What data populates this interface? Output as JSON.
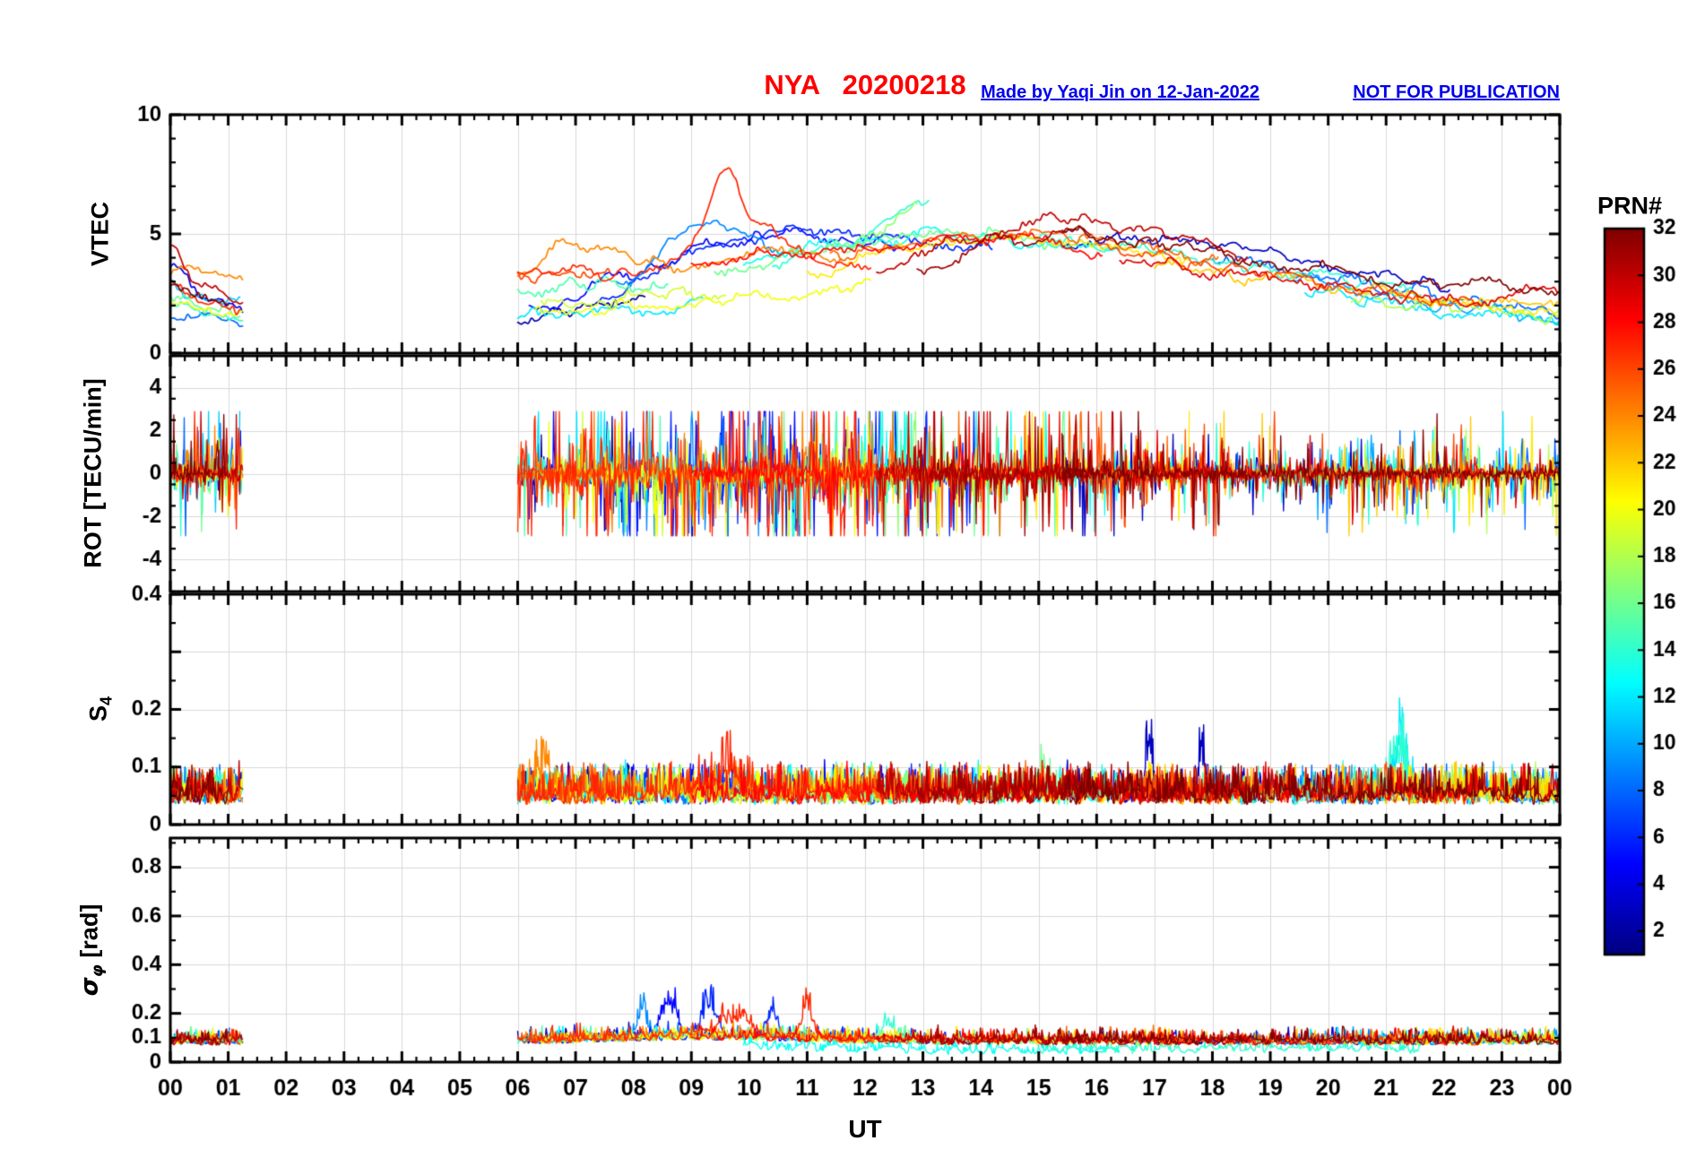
{
  "header": {
    "title": "NYA   20200218",
    "credit": "Made by Yaqi Jin on 12-Jan-2022",
    "warning": "NOT FOR PUBLICATION"
  },
  "chart_data": {
    "type": "line",
    "title": "NYA   20200218",
    "x_axis": {
      "label": "UT",
      "range": [
        0,
        24
      ],
      "major_step": 1,
      "minor_step": 0.25,
      "tick_labels": [
        "00",
        "01",
        "02",
        "03",
        "04",
        "05",
        "06",
        "07",
        "08",
        "09",
        "10",
        "11",
        "12",
        "13",
        "14",
        "15",
        "16",
        "17",
        "18",
        "19",
        "20",
        "21",
        "22",
        "23",
        "00"
      ]
    },
    "panels": [
      {
        "id": "vtec",
        "ylabel": "VTEC",
        "ylim": [
          0,
          10
        ],
        "ymajor": [
          0,
          5,
          10
        ],
        "yminor_step": 1,
        "ylabels": [
          {
            "v": 0,
            "l": "0"
          },
          {
            "v": 5,
            "l": "5"
          },
          {
            "v": 10,
            "l": "10"
          }
        ],
        "grid": true
      },
      {
        "id": "rot",
        "ylabel": "ROT [TECU/min]",
        "ylim": [
          -5.5,
          5.5
        ],
        "ymajor": [
          -4,
          -2,
          0,
          2,
          4
        ],
        "yminor_step": 1,
        "ylabels": [
          {
            "v": -4,
            "l": "-4"
          },
          {
            "v": -2,
            "l": "-2"
          },
          {
            "v": 0,
            "l": "0"
          },
          {
            "v": 2,
            "l": "2"
          },
          {
            "v": 4,
            "l": "4"
          }
        ],
        "grid": true
      },
      {
        "id": "s4",
        "ylabel_main": "S",
        "ylabel_sub": "4",
        "ylim": [
          0,
          0.4
        ],
        "ymajor": [
          0,
          0.1,
          0.2,
          0.3,
          0.4
        ],
        "yminor_step": 0.05,
        "ylabels": [
          {
            "v": 0,
            "l": "0"
          },
          {
            "v": 0.1,
            "l": "0.1"
          },
          {
            "v": 0.2,
            "l": "0.2"
          },
          {
            "v": 0.4,
            "l": "0.4"
          }
        ],
        "grid": true
      },
      {
        "id": "sigma_phi",
        "ylabel_main": "σ",
        "ylabel_sub": "φ",
        "ylabel_suffix": " [rad]",
        "ylim": [
          0,
          0.92
        ],
        "ymajor": [
          0,
          0.2,
          0.4,
          0.6,
          0.8
        ],
        "yminor_step": 0.1,
        "ylabels": [
          {
            "v": 0,
            "l": "0"
          },
          {
            "v": 0.1,
            "l": "0.1"
          },
          {
            "v": 0.2,
            "l": "0.2"
          },
          {
            "v": 0.4,
            "l": "0.4"
          },
          {
            "v": 0.6,
            "l": "0.6"
          },
          {
            "v": 0.8,
            "l": "0.8"
          }
        ],
        "grid": true
      }
    ],
    "colorbar": {
      "label": "PRN#",
      "range": [
        1,
        32
      ],
      "ticks": [
        2,
        4,
        6,
        8,
        10,
        12,
        14,
        16,
        18,
        20,
        22,
        24,
        26,
        28,
        30,
        32
      ],
      "colormap": "jet"
    },
    "style": {
      "background": "#ffffff",
      "grid_color": "#d9d9d9",
      "axis_color": "#000000",
      "title_color": "#ff0000",
      "note_color": "#0000ee",
      "line_color_rule": "jet((prn-1)/31)"
    },
    "passes": [
      {
        "p": 4,
        "t0": 0,
        "t1": 1.25,
        "v": [
          3.9,
          2.2,
          1.8
        ]
      },
      {
        "p": 8,
        "t0": 0,
        "t1": 1.25,
        "v": [
          1.3,
          1.6,
          1.5
        ]
      },
      {
        "p": 11,
        "t0": 0,
        "t1": 1.2,
        "v": [
          2.7,
          2.5,
          2.3
        ]
      },
      {
        "p": 14,
        "t0": 0,
        "t1": 1.25,
        "v": [
          1.9,
          1.75,
          1.6
        ]
      },
      {
        "p": 16,
        "t0": 0,
        "t1": 1.2,
        "v": [
          2.3,
          2.0,
          1.8
        ]
      },
      {
        "p": 20,
        "t0": 0,
        "t1": 1.25,
        "v": [
          2.1,
          1.9,
          1.85
        ]
      },
      {
        "p": 24,
        "t0": 0,
        "t1": 1.25,
        "v": [
          3.3,
          3.45,
          3.3
        ]
      },
      {
        "p": 27,
        "t0": 0,
        "t1": 1.2,
        "v": [
          3.0,
          2.3,
          2.0
        ]
      },
      {
        "p": 30,
        "t0": 0,
        "t1": 1.25,
        "v": [
          4.4,
          2.6,
          2.2
        ]
      },
      {
        "p": 32,
        "t0": 0,
        "t1": 1.0,
        "v": [
          2.6,
          2.4,
          2.3
        ]
      },
      {
        "p": 2,
        "t0": 6.0,
        "t1": 8.2,
        "v": [
          1.5,
          1.8,
          2.1
        ]
      },
      {
        "p": 3,
        "t0": 15.4,
        "t1": 22.1,
        "v": [
          4.6,
          4.9,
          4.4,
          3.6,
          2.9
        ],
        "s4s": [
          [
            16.9,
            0.1,
            0.05
          ],
          [
            17.8,
            0.085,
            0.05
          ]
        ]
      },
      {
        "p": 5,
        "t0": 6.2,
        "t1": 12.6,
        "v": [
          1.7,
          3.2,
          4.6,
          5.0,
          4.5
        ],
        "ra": 0.5,
        "sgs": [
          [
            8.6,
            0.16,
            0.12
          ]
        ]
      },
      {
        "p": 6,
        "t0": 7.4,
        "t1": 14.2,
        "v": [
          2.4,
          4.3,
          5.1,
          4.7,
          4.4
        ],
        "ra": 0.5,
        "sgs": [
          [
            9.3,
            0.14,
            0.12
          ],
          [
            10.4,
            0.11,
            0.08
          ]
        ]
      },
      {
        "p": 8,
        "t0": 18.0,
        "t1": 24.0,
        "v": [
          4.0,
          3.3,
          2.8,
          2.2,
          1.6
        ]
      },
      {
        "p": 9,
        "t0": 7.7,
        "t1": 10.6,
        "v": [
          2.8,
          5.4,
          4.3
        ],
        "ra": 0.5,
        "sgs": [
          [
            8.15,
            0.12,
            0.08
          ]
        ]
      },
      {
        "p": 10,
        "t0": 19.4,
        "t1": 24.0,
        "v": [
          3.1,
          2.4,
          1.8,
          1.3
        ]
      },
      {
        "p": 12,
        "t0": 6.0,
        "t1": 9.2,
        "v": [
          1.7,
          1.9,
          2.0
        ]
      },
      {
        "p": 12,
        "t0": 19.6,
        "t1": 24.0,
        "v": [
          2.6,
          2.1,
          1.6,
          1.2
        ],
        "s4s": [
          [
            21.25,
            0.09,
            0.1
          ]
        ]
      },
      {
        "p": 13,
        "t0": 9.9,
        "t1": 16.4,
        "v": [
          4.0,
          4.6,
          5.0,
          4.7,
          4.2
        ],
        "sgb": 0.03
      },
      {
        "p": 14,
        "t0": 10.4,
        "t1": 13.1,
        "v": [
          3.8,
          4.7,
          6.2
        ],
        "sgs": [
          [
            12.4,
            0.09,
            0.1
          ]
        ]
      },
      {
        "p": 14,
        "t0": 15.0,
        "t1": 21.6,
        "v": [
          4.9,
          4.4,
          3.8,
          3.2,
          2.6
        ],
        "sgb": 0.035,
        "s4s": [
          [
            21.2,
            0.09,
            0.12
          ]
        ]
      },
      {
        "p": 15,
        "t0": 6.0,
        "t1": 8.6,
        "v": [
          2.6,
          2.9,
          2.8
        ]
      },
      {
        "p": 16,
        "t0": 9.4,
        "t1": 15.6,
        "v": [
          3.1,
          4.3,
          4.9,
          5.0,
          4.5
        ],
        "s4s": [
          [
            15.1,
            0.055,
            0.06
          ]
        ]
      },
      {
        "p": 17,
        "t0": 11.6,
        "t1": 12.9,
        "v": [
          4.4,
          5.3,
          6.4
        ]
      },
      {
        "p": 18,
        "t0": 20.4,
        "t1": 24.0,
        "v": [
          2.4,
          2.0,
          1.7,
          1.5
        ]
      },
      {
        "p": 19,
        "t0": 6.4,
        "t1": 9.6,
        "v": [
          2.1,
          2.3,
          2.6
        ]
      },
      {
        "p": 20,
        "t0": 6.3,
        "t1": 12.1,
        "v": [
          1.8,
          2.0,
          2.3,
          3.0
        ]
      },
      {
        "p": 21,
        "t0": 11.0,
        "t1": 17.6,
        "v": [
          3.3,
          4.4,
          4.7,
          4.4,
          3.9
        ]
      },
      {
        "p": 21,
        "t0": 21.0,
        "t1": 24.0,
        "v": [
          2.4,
          2.1,
          1.8
        ]
      },
      {
        "p": 22,
        "t0": 17.0,
        "t1": 24.0,
        "v": [
          3.7,
          3.1,
          2.7,
          2.2,
          1.9
        ]
      },
      {
        "p": 24,
        "t0": 6.0,
        "t1": 11.6,
        "v": [
          3.3,
          4.2,
          3.7,
          4.3,
          4.0
        ],
        "pk": [
          [
            6.8,
            4.6,
            0.25
          ]
        ],
        "s4s": [
          [
            6.4,
            0.05,
            0.15
          ]
        ]
      },
      {
        "p": 25,
        "t0": 11.4,
        "t1": 18.1,
        "v": [
          4.0,
          4.6,
          5.0,
          4.6,
          3.8
        ]
      },
      {
        "p": 26,
        "t0": 6.0,
        "t1": 7.6,
        "v": [
          3.2,
          3.4,
          3.3
        ]
      },
      {
        "p": 26,
        "t0": 16.0,
        "t1": 22.6,
        "v": [
          4.4,
          3.8,
          3.2,
          2.6,
          2.1
        ]
      },
      {
        "p": 27,
        "t0": 6.0,
        "t1": 12.1,
        "v": [
          3.3,
          3.4,
          4.1,
          4.3,
          3.7
        ],
        "pk": [
          [
            9.6,
            7.8,
            0.28
          ],
          [
            10.35,
            5.4,
            0.2
          ]
        ],
        "ra": 0.9,
        "sgs": [
          [
            9.7,
            0.08,
            0.3
          ],
          [
            11.0,
            0.13,
            0.1
          ]
        ],
        "s4s": [
          [
            9.6,
            0.04,
            0.3
          ]
        ]
      },
      {
        "p": 28,
        "t0": 9.0,
        "t1": 16.1,
        "v": [
          3.7,
          4.3,
          4.6,
          4.9,
          4.2
        ]
      },
      {
        "p": 29,
        "t0": 16.4,
        "t1": 24.0,
        "v": [
          4.1,
          3.3,
          2.7,
          2.2,
          2.5
        ],
        "pk": [
          [
            23.5,
            2.9,
            0.2
          ]
        ]
      },
      {
        "p": 30,
        "t0": 12.2,
        "t1": 18.6,
        "v": [
          3.4,
          4.9,
          5.6,
          5.0,
          4.1
        ]
      },
      {
        "p": 31,
        "t0": 12.9,
        "t1": 15.9,
        "v": [
          3.5,
          4.7,
          5.2
        ]
      },
      {
        "p": 32,
        "t0": 15.4,
        "t1": 24.0,
        "v": [
          5.0,
          4.4,
          3.6,
          2.9,
          2.6
        ],
        "pk": [
          [
            22.8,
            3.2,
            0.25
          ]
        ]
      }
    ]
  }
}
